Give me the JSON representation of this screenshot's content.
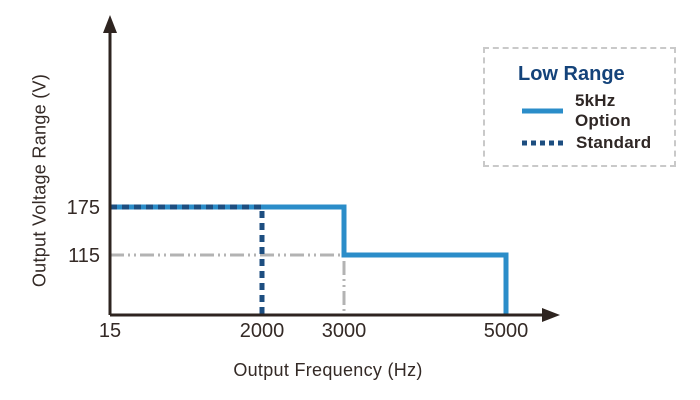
{
  "chart_data": {
    "type": "line",
    "title": "",
    "xlabel": "Output Frequency (Hz)",
    "ylabel": "Output Voltage Range (V)",
    "x_ticks": [
      15,
      2000,
      3000,
      5000
    ],
    "y_ticks": [
      115,
      175
    ],
    "xlim": [
      15,
      5600
    ],
    "ylim": [
      0,
      230
    ],
    "grid": false,
    "axis_arrows": true,
    "legend": {
      "position": "top-right",
      "title": "Low Range",
      "title_color": "#14437a",
      "border_style": "dashed",
      "border_color": "#c9c9c9"
    },
    "series": [
      {
        "name": "5kHz Option",
        "style": "solid",
        "color": "#2b8dc9",
        "points": [
          [
            15,
            175
          ],
          [
            3000,
            175
          ],
          [
            3000,
            115
          ],
          [
            5000,
            115
          ],
          [
            5000,
            0
          ]
        ]
      },
      {
        "name": "Standard",
        "style": "dashed",
        "color": "#1d4e80",
        "points": [
          [
            15,
            175
          ],
          [
            2000,
            175
          ],
          [
            2000,
            0
          ]
        ]
      }
    ],
    "reference_lines": [
      {
        "name": "guide-115v-3000hz",
        "style": "dash-dot-dot",
        "color": "#b3b3b3",
        "points": [
          [
            15,
            115
          ],
          [
            3000,
            115
          ],
          [
            3000,
            0
          ]
        ]
      }
    ],
    "colors": {
      "axis": "#2e2420",
      "tick_text": "#342a26"
    }
  }
}
